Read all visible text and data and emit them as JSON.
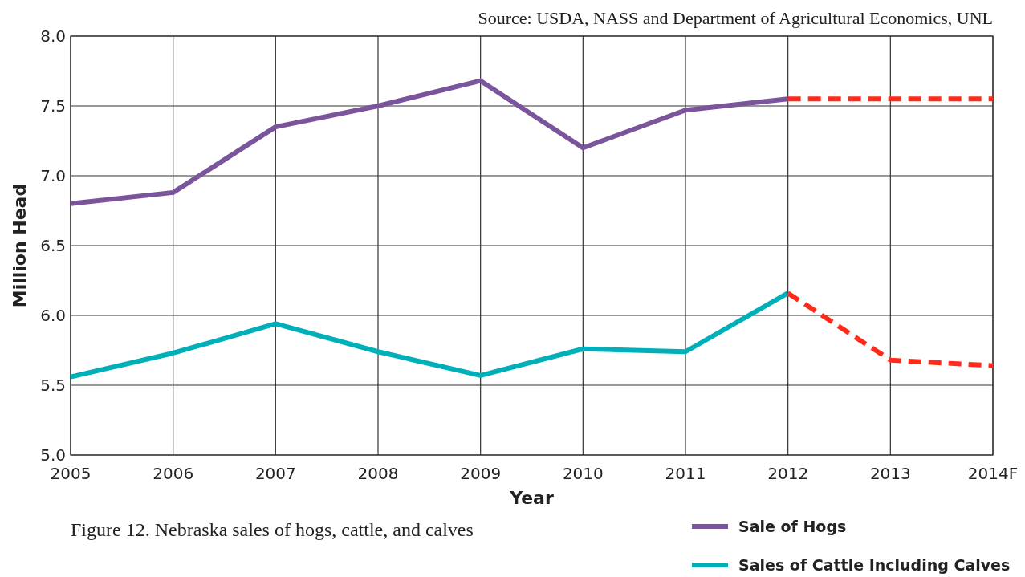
{
  "chart_data": {
    "type": "line",
    "title": "Figure 12. Nebraska sales of hogs, cattle, and calves",
    "xlabel": "Year",
    "ylabel": "Million Head",
    "annotations": [
      "Source: USDA, NASS and Department of Agricultural Economics, UNL"
    ],
    "categories": [
      "2005",
      "2006",
      "2007",
      "2008",
      "2009",
      "2010",
      "2011",
      "2012",
      "2013",
      "2014F"
    ],
    "series": [
      {
        "name": "Sale of Hogs",
        "color": "#7b559b",
        "values": [
          6.8,
          6.88,
          7.35,
          7.5,
          7.68,
          7.2,
          7.47,
          7.55,
          null,
          null
        ]
      },
      {
        "name": "Sales of Cattle Including Calves",
        "color": "#00b0b9",
        "values": [
          5.56,
          5.73,
          5.94,
          5.74,
          5.57,
          5.76,
          5.74,
          6.16,
          null,
          null
        ]
      },
      {
        "color": "#ff2a1a",
        "line_style": "dashed",
        "values": [
          null,
          null,
          null,
          null,
          null,
          null,
          null,
          7.55,
          7.55,
          7.55
        ]
      },
      {
        "color": "#ff2a1a",
        "line_style": "dashed",
        "values": [
          null,
          null,
          null,
          null,
          null,
          null,
          null,
          6.16,
          5.68,
          5.64
        ]
      }
    ],
    "ylim": [
      5.0,
      8.0
    ],
    "yticks": [
      {
        "value": 5.0,
        "label": "5.0"
      },
      {
        "value": 5.5,
        "label": "5.5"
      },
      {
        "value": 6.0,
        "label": "6.0"
      },
      {
        "value": 6.5,
        "label": "6.5"
      },
      {
        "value": 7.0,
        "label": "7.0"
      },
      {
        "value": 7.5,
        "label": "7.5"
      },
      {
        "value": 8.0,
        "label": "8.0"
      }
    ],
    "grid": true,
    "legend": "bottom right",
    "line_style": "solid"
  }
}
